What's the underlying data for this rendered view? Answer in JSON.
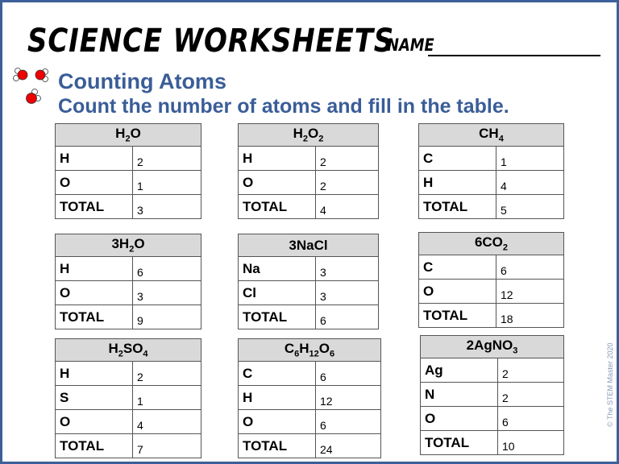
{
  "header": {
    "title": "SCIENCE WORKSHEETS",
    "name_label": "NAME"
  },
  "heading": "Counting Atoms",
  "instruction": "Count the number of atoms and fill in the table.",
  "copyright": "© The STEM Master 2020",
  "colors": {
    "accent": "#3a5d98",
    "border": "#3d5f99",
    "header_fill": "#d9d9d9"
  },
  "tables": [
    {
      "formula": [
        [
          "H",
          "2"
        ],
        [
          "O",
          ""
        ]
      ],
      "rows": [
        [
          "H",
          "2"
        ],
        [
          "O",
          "1"
        ],
        [
          "TOTAL",
          "3"
        ]
      ]
    },
    {
      "formula": [
        [
          "H",
          "2"
        ],
        [
          "O",
          "2"
        ]
      ],
      "rows": [
        [
          "H",
          "2"
        ],
        [
          "O",
          "2"
        ],
        [
          "TOTAL",
          "4"
        ]
      ]
    },
    {
      "formula": [
        [
          "CH",
          "4"
        ]
      ],
      "rows": [
        [
          "C",
          "1"
        ],
        [
          "H",
          "4"
        ],
        [
          "TOTAL",
          "5"
        ]
      ]
    },
    {
      "formula": [
        [
          "3H",
          "2"
        ],
        [
          "O",
          ""
        ]
      ],
      "rows": [
        [
          "H",
          "6"
        ],
        [
          "O",
          "3"
        ],
        [
          "TOTAL",
          "9"
        ]
      ]
    },
    {
      "formula": [
        [
          "3NaCl",
          ""
        ]
      ],
      "rows": [
        [
          "Na",
          "3"
        ],
        [
          "Cl",
          "3"
        ],
        [
          "TOTAL",
          "6"
        ]
      ]
    },
    {
      "formula": [
        [
          "6CO",
          "2"
        ]
      ],
      "rows": [
        [
          "C",
          "6"
        ],
        [
          "O",
          "12"
        ],
        [
          "TOTAL",
          "18"
        ]
      ]
    },
    {
      "formula": [
        [
          "H",
          "2"
        ],
        [
          "SO",
          "4"
        ]
      ],
      "rows": [
        [
          "H",
          "2"
        ],
        [
          "S",
          "1"
        ],
        [
          "O",
          "4"
        ],
        [
          "TOTAL",
          "7"
        ]
      ]
    },
    {
      "formula": [
        [
          "C",
          "6"
        ],
        [
          "H",
          "12"
        ],
        [
          "O",
          "6"
        ]
      ],
      "rows": [
        [
          "C",
          "6"
        ],
        [
          "H",
          "12"
        ],
        [
          "O",
          "6"
        ],
        [
          "TOTAL",
          "24"
        ]
      ]
    },
    {
      "formula": [
        [
          "2AgNO",
          "3"
        ]
      ],
      "rows": [
        [
          "Ag",
          "2"
        ],
        [
          "N",
          "2"
        ],
        [
          "O",
          "6"
        ],
        [
          "TOTAL",
          "10"
        ]
      ]
    }
  ]
}
